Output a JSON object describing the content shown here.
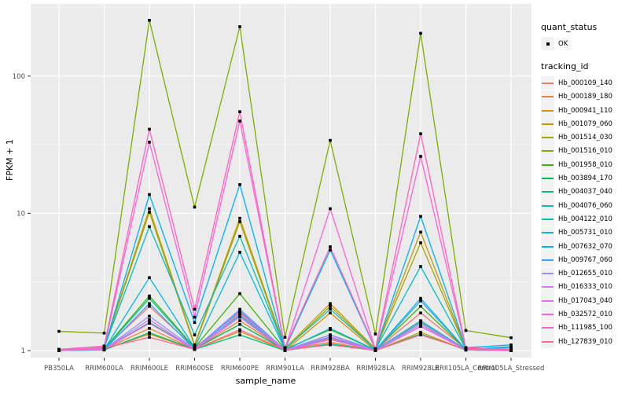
{
  "style": {
    "panel_bg": "#EBEBEB",
    "grid_color": "#FFFFFF",
    "tick_color": "#333333",
    "tick_label_color": "#4D4D4D",
    "point_color": "#000000",
    "legend_key_bg": "#F2F2F2"
  },
  "axes": {
    "y_title": "FPKM + 1",
    "x_title": "sample_name"
  },
  "legend": {
    "quant_status_title": "quant_status",
    "quant_status_items": [
      {
        "label": "OK",
        "symbol": "point"
      }
    ],
    "tracking_id_title": "tracking_id",
    "position": "right"
  },
  "chart_data": {
    "type": "line",
    "title": "",
    "xlabel": "sample_name",
    "ylabel": "FPKM + 1",
    "y_scale": "log10",
    "y_ticks": [
      1,
      10,
      100
    ],
    "y_minor_ticks": [
      3.162,
      31.62,
      316.2
    ],
    "ylim": [
      0.93,
      340
    ],
    "grid": true,
    "legend_position": "right",
    "point_shape": "small-black-square",
    "categories": [
      "PB350LA",
      "RRIM600LA",
      "RRIM600LE",
      "RRIM600SE",
      "RRIM600PE",
      "RRIM901LA",
      "RRIM928BA",
      "RRIM928LA",
      "RRIM928LE",
      "RRII105LA_Control",
      "RRII105LA_Stressed"
    ],
    "series": [
      {
        "name": "Hb_000109_140",
        "color": "#F8766D",
        "values": [
          1.0,
          1.03,
          2.1,
          1.05,
          1.9,
          1.02,
          1.22,
          1.01,
          1.88,
          1.03,
          1.01
        ]
      },
      {
        "name": "Hb_000189_180",
        "color": "#EA8331",
        "values": [
          1.0,
          1.02,
          1.45,
          1.02,
          1.65,
          1.01,
          1.15,
          1.0,
          1.5,
          1.02,
          1.0
        ]
      },
      {
        "name": "Hb_000941_110",
        "color": "#D89000",
        "values": [
          1.0,
          1.02,
          1.32,
          1.02,
          1.38,
          1.0,
          1.88,
          1.0,
          1.36,
          1.01,
          1.0
        ]
      },
      {
        "name": "Hb_001079_060",
        "color": "#C09B00",
        "values": [
          1.0,
          1.06,
          10.8,
          1.1,
          9.2,
          1.04,
          2.2,
          1.03,
          7.3,
          1.04,
          1.02
        ]
      },
      {
        "name": "Hb_001514_030",
        "color": "#A3A500",
        "values": [
          1.0,
          1.05,
          10.2,
          1.08,
          8.7,
          1.02,
          2.1,
          1.02,
          6.1,
          1.03,
          1.01
        ]
      },
      {
        "name": "Hb_001516_010",
        "color": "#7CAE00",
        "values": [
          1.38,
          1.34,
          255.0,
          11.1,
          229.0,
          1.25,
          34.0,
          1.32,
          205.0,
          1.4,
          1.24
        ]
      },
      {
        "name": "Hb_001958_010",
        "color": "#39B600",
        "values": [
          1.0,
          1.03,
          2.5,
          1.05,
          2.6,
          1.02,
          1.42,
          1.01,
          2.1,
          1.02,
          1.01
        ]
      },
      {
        "name": "Hb_003894_170",
        "color": "#00BB4E",
        "values": [
          1.0,
          1.02,
          1.6,
          1.03,
          1.55,
          1.01,
          1.25,
          1.0,
          1.6,
          1.01,
          1.0
        ]
      },
      {
        "name": "Hb_004037_040",
        "color": "#00BF7D",
        "values": [
          1.0,
          1.01,
          1.35,
          1.02,
          1.3,
          1.0,
          1.12,
          1.0,
          1.32,
          1.01,
          1.0
        ]
      },
      {
        "name": "Hb_004076_060",
        "color": "#00C1A3",
        "values": [
          1.0,
          1.02,
          2.4,
          1.04,
          1.8,
          1.01,
          1.3,
          1.01,
          1.65,
          1.02,
          1.01
        ]
      },
      {
        "name": "Hb_004122_010",
        "color": "#00BFC4",
        "values": [
          1.0,
          1.05,
          8.0,
          1.3,
          6.8,
          1.03,
          2.0,
          1.02,
          4.1,
          1.03,
          1.02
        ]
      },
      {
        "name": "Hb_005731_010",
        "color": "#00BAE0",
        "values": [
          1.0,
          1.02,
          3.4,
          1.05,
          5.2,
          1.01,
          1.45,
          1.01,
          2.4,
          1.02,
          1.07
        ]
      },
      {
        "name": "Hb_007632_070",
        "color": "#00B0F6",
        "values": [
          1.0,
          1.04,
          13.7,
          1.6,
          16.2,
          1.03,
          5.4,
          1.02,
          9.5,
          1.05,
          1.1
        ]
      },
      {
        "name": "Hb_009767_060",
        "color": "#35A2FF",
        "values": [
          1.0,
          1.01,
          2.2,
          1.02,
          1.95,
          1.0,
          1.25,
          1.0,
          2.3,
          1.02,
          1.05
        ]
      },
      {
        "name": "Hb_012655_010",
        "color": "#9590FF",
        "values": [
          1.0,
          1.02,
          1.78,
          1.03,
          2.0,
          1.01,
          1.3,
          1.0,
          1.62,
          1.01,
          1.0
        ]
      },
      {
        "name": "Hb_016333_010",
        "color": "#C77CFF",
        "values": [
          1.0,
          1.02,
          1.68,
          1.02,
          1.85,
          1.01,
          1.26,
          1.0,
          1.55,
          1.01,
          1.0
        ]
      },
      {
        "name": "Hb_017043_040",
        "color": "#E76BF3",
        "values": [
          1.01,
          1.02,
          1.58,
          1.02,
          1.75,
          1.0,
          1.2,
          1.0,
          1.5,
          1.01,
          1.0
        ]
      },
      {
        "name": "Hb_032572_010",
        "color": "#FA62DB",
        "values": [
          1.01,
          1.05,
          33.0,
          1.75,
          47.0,
          1.04,
          10.8,
          1.02,
          26.0,
          1.05,
          1.01
        ]
      },
      {
        "name": "Hb_111985_100",
        "color": "#FF62BC",
        "values": [
          1.02,
          1.08,
          41.0,
          2.0,
          55.0,
          1.05,
          5.7,
          1.03,
          38.0,
          1.05,
          1.02
        ]
      },
      {
        "name": "Hb_127839_010",
        "color": "#FF6A98",
        "values": [
          1.02,
          1.04,
          1.25,
          1.02,
          1.42,
          1.01,
          1.1,
          1.0,
          1.3,
          1.02,
          1.01
        ]
      }
    ]
  }
}
